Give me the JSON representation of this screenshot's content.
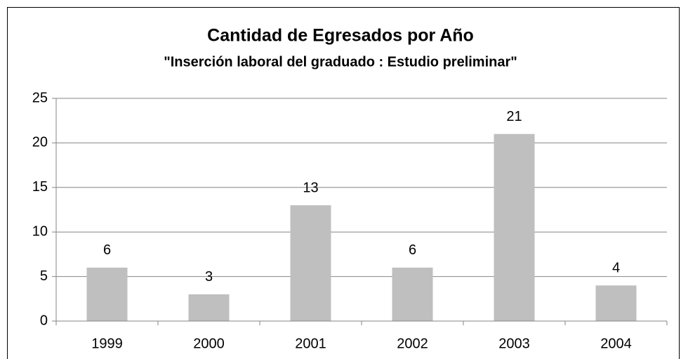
{
  "chart_data": {
    "type": "bar",
    "title": "Cantidad de Egresados por Año",
    "subtitle": "\"Inserción laboral del graduado : Estudio preliminar\"",
    "categories": [
      "1999",
      "2000",
      "2001",
      "2002",
      "2003",
      "2004"
    ],
    "values": [
      6,
      3,
      13,
      6,
      21,
      4
    ],
    "color": "#bfbfbf",
    "ylim": [
      0,
      25
    ],
    "yticks": [
      0,
      5,
      10,
      15,
      20,
      25
    ],
    "grid": true
  }
}
